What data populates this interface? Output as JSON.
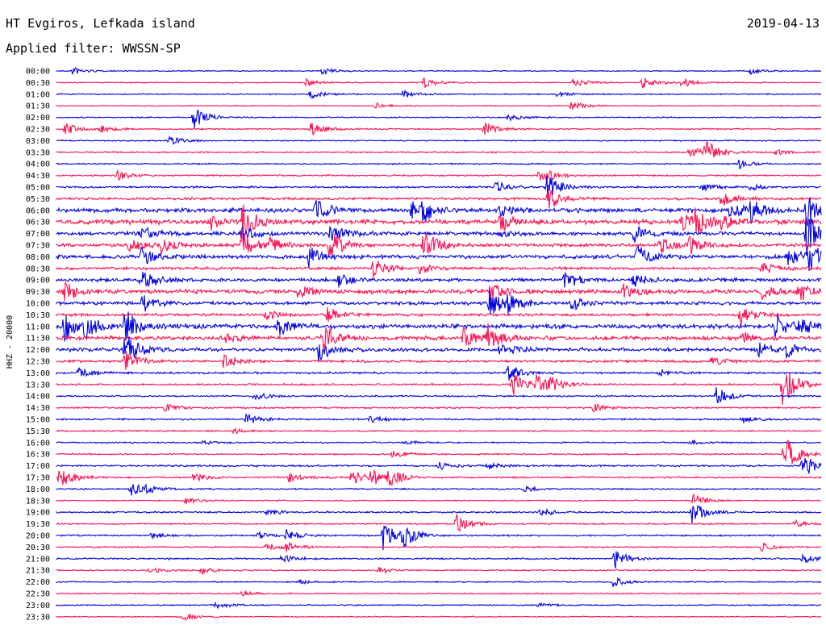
{
  "header": {
    "station": "HT Evgiros, Lefkada island",
    "filter": "Applied filter: WWSSN-SP",
    "date": "2019-04-13"
  },
  "chart_data": {
    "type": "line",
    "title": "HT Evgiros, Lefkada island",
    "subtitle": "Applied filter: WWSSN-SP",
    "ylabel": "HHZ - 20000",
    "colors": {
      "odd": "#0000e6",
      "even": "#ff1050"
    },
    "rows": [
      "00:00",
      "00:30",
      "01:00",
      "01:30",
      "02:00",
      "02:30",
      "03:00",
      "03:30",
      "04:00",
      "04:30",
      "05:00",
      "05:30",
      "06:00",
      "06:30",
      "07:00",
      "07:30",
      "08:00",
      "08:30",
      "09:00",
      "09:30",
      "10:00",
      "10:30",
      "11:00",
      "11:30",
      "12:00",
      "12:30",
      "13:00",
      "13:30",
      "14:00",
      "14:30",
      "15:00",
      "15:30",
      "16:00",
      "16:30",
      "17:00",
      "17:30",
      "18:00",
      "18:30",
      "19:00",
      "19:30",
      "20:00",
      "20:30",
      "21:00",
      "21:30",
      "22:00",
      "22:30",
      "23:00",
      "23:30"
    ],
    "noise": [
      0.5,
      0.5,
      0.6,
      0.5,
      0.6,
      0.7,
      0.6,
      0.7,
      0.7,
      0.8,
      0.9,
      1.2,
      2.0,
      2.2,
      1.8,
      1.6,
      1.8,
      1.4,
      1.7,
      2.0,
      1.6,
      1.3,
      2.2,
      1.9,
      1.7,
      1.2,
      1.0,
      0.9,
      0.8,
      0.8,
      0.8,
      0.7,
      0.7,
      0.7,
      0.9,
      0.8,
      0.7,
      0.6,
      0.8,
      0.7,
      0.8,
      0.7,
      0.8,
      0.7,
      0.6,
      0.6,
      0.6,
      0.5
    ],
    "events": [
      [
        0,
        90,
        5
      ],
      [
        0,
        400,
        4
      ],
      [
        0,
        930,
        4
      ],
      [
        1,
        380,
        5
      ],
      [
        1,
        525,
        7
      ],
      [
        1,
        710,
        6
      ],
      [
        1,
        795,
        9
      ],
      [
        1,
        845,
        6
      ],
      [
        2,
        385,
        5
      ],
      [
        2,
        500,
        5
      ],
      [
        2,
        690,
        4
      ],
      [
        3,
        465,
        4
      ],
      [
        3,
        708,
        7
      ],
      [
        4,
        240,
        14
      ],
      [
        4,
        630,
        4
      ],
      [
        5,
        80,
        8
      ],
      [
        5,
        125,
        5
      ],
      [
        5,
        385,
        9
      ],
      [
        5,
        600,
        8
      ],
      [
        6,
        210,
        6
      ],
      [
        7,
        855,
        8
      ],
      [
        7,
        875,
        15
      ],
      [
        7,
        960,
        4
      ],
      [
        8,
        915,
        6
      ],
      [
        9,
        145,
        6
      ],
      [
        9,
        668,
        7
      ],
      [
        9,
        678,
        4
      ],
      [
        10,
        615,
        10
      ],
      [
        10,
        678,
        18
      ],
      [
        10,
        870,
        5
      ],
      [
        10,
        930,
        4
      ],
      [
        11,
        680,
        15
      ],
      [
        11,
        893,
        10
      ],
      [
        12,
        390,
        16
      ],
      [
        12,
        510,
        15
      ],
      [
        12,
        525,
        10
      ],
      [
        12,
        620,
        8
      ],
      [
        12,
        905,
        12
      ],
      [
        12,
        930,
        14
      ],
      [
        12,
        1000,
        20
      ],
      [
        13,
        262,
        8
      ],
      [
        13,
        300,
        24
      ],
      [
        13,
        620,
        12
      ],
      [
        13,
        845,
        14
      ],
      [
        13,
        862,
        16
      ],
      [
        13,
        895,
        8
      ],
      [
        14,
        175,
        9
      ],
      [
        14,
        300,
        10
      ],
      [
        14,
        410,
        12
      ],
      [
        14,
        620,
        4
      ],
      [
        14,
        786,
        10
      ],
      [
        14,
        1000,
        28
      ],
      [
        15,
        158,
        10
      ],
      [
        15,
        200,
        10
      ],
      [
        15,
        300,
        18
      ],
      [
        15,
        335,
        8
      ],
      [
        15,
        408,
        22
      ],
      [
        15,
        525,
        22
      ],
      [
        15,
        818,
        12
      ],
      [
        15,
        855,
        10
      ],
      [
        16,
        175,
        14
      ],
      [
        16,
        383,
        12
      ],
      [
        16,
        788,
        16
      ],
      [
        16,
        975,
        14
      ],
      [
        16,
        1003,
        20
      ],
      [
        17,
        463,
        12
      ],
      [
        17,
        520,
        6
      ],
      [
        17,
        945,
        8
      ],
      [
        18,
        175,
        16
      ],
      [
        18,
        420,
        8
      ],
      [
        18,
        700,
        12
      ],
      [
        18,
        785,
        8
      ],
      [
        19,
        80,
        12
      ],
      [
        19,
        370,
        10
      ],
      [
        19,
        607,
        10
      ],
      [
        19,
        773,
        8
      ],
      [
        19,
        945,
        10
      ],
      [
        19,
        990,
        12
      ],
      [
        20,
        177,
        10
      ],
      [
        20,
        607,
        18
      ],
      [
        20,
        630,
        10
      ],
      [
        20,
        708,
        10
      ],
      [
        21,
        330,
        8
      ],
      [
        21,
        405,
        10
      ],
      [
        21,
        918,
        12
      ],
      [
        22,
        80,
        18
      ],
      [
        22,
        105,
        16
      ],
      [
        22,
        155,
        22
      ],
      [
        22,
        345,
        14
      ],
      [
        22,
        960,
        18
      ],
      [
        22,
        990,
        10
      ],
      [
        23,
        280,
        7
      ],
      [
        23,
        400,
        18
      ],
      [
        23,
        575,
        12
      ],
      [
        23,
        605,
        16
      ],
      [
        23,
        920,
        6
      ],
      [
        24,
        155,
        22
      ],
      [
        24,
        395,
        16
      ],
      [
        24,
        620,
        12
      ],
      [
        24,
        940,
        10
      ],
      [
        24,
        975,
        8
      ],
      [
        25,
        155,
        14
      ],
      [
        25,
        278,
        10
      ],
      [
        25,
        880,
        6
      ],
      [
        26,
        98,
        6
      ],
      [
        26,
        630,
        10
      ],
      [
        26,
        818,
        4
      ],
      [
        27,
        635,
        16
      ],
      [
        27,
        665,
        10
      ],
      [
        27,
        680,
        8
      ],
      [
        27,
        970,
        28
      ],
      [
        28,
        315,
        6
      ],
      [
        28,
        888,
        12
      ],
      [
        29,
        205,
        5
      ],
      [
        29,
        735,
        5
      ],
      [
        30,
        305,
        8
      ],
      [
        30,
        458,
        6
      ],
      [
        30,
        920,
        5
      ],
      [
        31,
        290,
        3
      ],
      [
        32,
        250,
        3
      ],
      [
        32,
        500,
        3
      ],
      [
        32,
        855,
        3
      ],
      [
        33,
        487,
        5
      ],
      [
        33,
        972,
        26
      ],
      [
        34,
        545,
        5
      ],
      [
        34,
        605,
        4
      ],
      [
        34,
        995,
        16
      ],
      [
        35,
        74,
        14
      ],
      [
        35,
        240,
        5
      ],
      [
        35,
        358,
        6
      ],
      [
        35,
        436,
        10
      ],
      [
        35,
        460,
        10
      ],
      [
        35,
        482,
        12
      ],
      [
        36,
        162,
        8
      ],
      [
        36,
        180,
        5
      ],
      [
        36,
        650,
        4
      ],
      [
        37,
        230,
        4
      ],
      [
        37,
        860,
        8
      ],
      [
        38,
        330,
        4
      ],
      [
        38,
        670,
        5
      ],
      [
        38,
        858,
        14
      ],
      [
        39,
        565,
        12
      ],
      [
        39,
        985,
        4
      ],
      [
        40,
        188,
        4
      ],
      [
        40,
        320,
        4
      ],
      [
        40,
        355,
        7
      ],
      [
        40,
        475,
        20
      ],
      [
        40,
        500,
        14
      ],
      [
        41,
        330,
        5
      ],
      [
        41,
        355,
        6
      ],
      [
        41,
        945,
        6
      ],
      [
        42,
        350,
        6
      ],
      [
        42,
        762,
        14
      ],
      [
        42,
        995,
        6
      ],
      [
        43,
        185,
        4
      ],
      [
        43,
        250,
        4
      ],
      [
        43,
        470,
        4
      ],
      [
        44,
        370,
        3
      ],
      [
        44,
        760,
        6
      ],
      [
        45,
        300,
        3
      ],
      [
        46,
        268,
        4
      ],
      [
        46,
        668,
        3
      ],
      [
        47,
        228,
        5
      ]
    ]
  }
}
